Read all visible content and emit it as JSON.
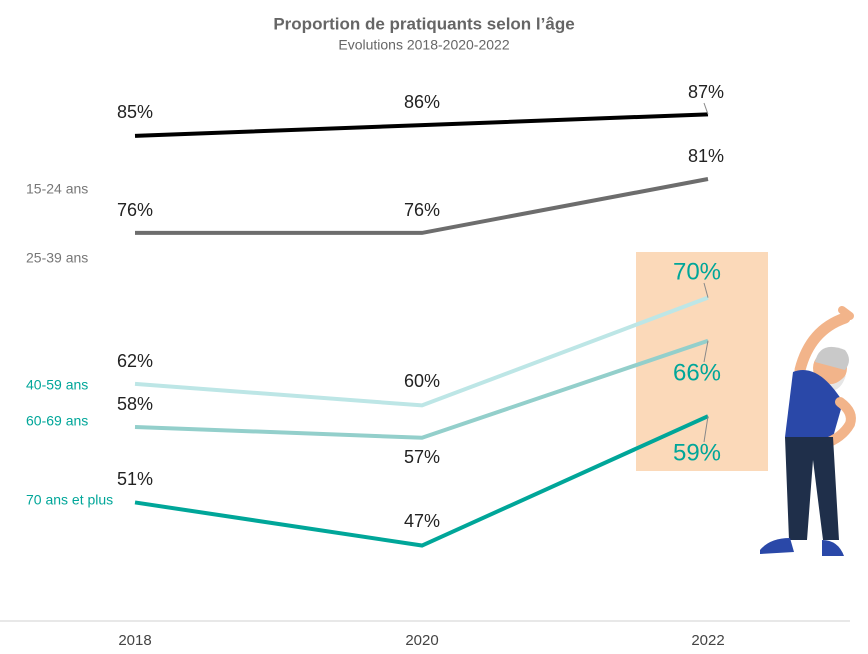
{
  "chart_data": {
    "type": "line",
    "title": "Proportion de pratiquants selon l’âge",
    "subtitle": "Evolutions 2018-2020-2022",
    "categories": [
      "2018",
      "2020",
      "2022"
    ],
    "ylim": [
      40,
      90
    ],
    "series": [
      {
        "name": "15-24 ans",
        "color": "#000000",
        "values": [
          85,
          86,
          87
        ],
        "value_labels": [
          "85%",
          "86%",
          "87%"
        ]
      },
      {
        "name": "25-39 ans",
        "color": "#6d6d6d",
        "values": [
          76,
          76,
          81
        ],
        "value_labels": [
          "76%",
          "76%",
          "81%"
        ]
      },
      {
        "name": "40-59 ans",
        "color": "#bde6e6",
        "values": [
          62,
          60,
          70
        ],
        "value_labels": [
          "62%",
          "60%",
          "70%"
        ]
      },
      {
        "name": "60-69 ans",
        "color": "#93cfcb",
        "values": [
          58,
          57,
          66
        ],
        "value_labels": [
          "58%",
          "57%",
          "66%"
        ]
      },
      {
        "name": "70 ans et plus",
        "color": "#00a699",
        "values": [
          51,
          47,
          59
        ],
        "value_labels": [
          "51%",
          "47%",
          "59%"
        ]
      }
    ]
  }
}
